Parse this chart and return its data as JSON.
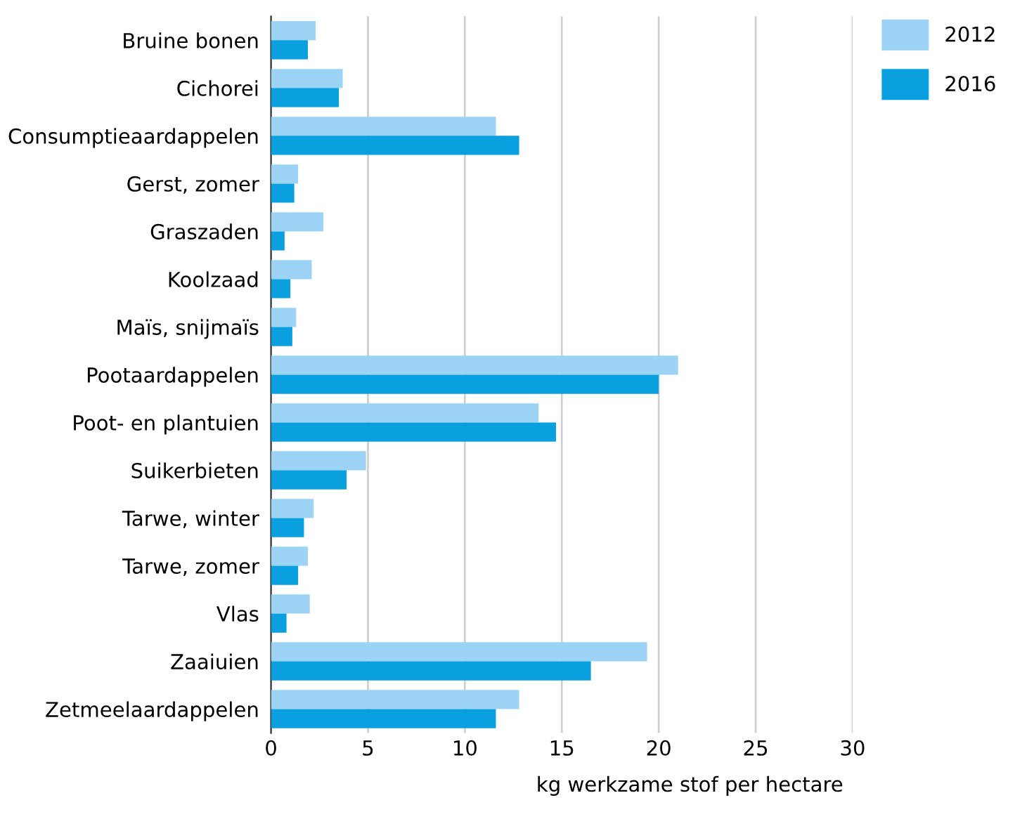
{
  "chart_data": {
    "type": "bar",
    "orientation": "horizontal",
    "xlabel": "kg werkzame stof per hectare",
    "categories": [
      "Bruine bonen",
      "Cichorei",
      "Consumptieaardappelen",
      "Gerst, zomer",
      "Graszaden",
      "Koolzaad",
      "Maïs, snijmaïs",
      "Pootaardappelen",
      "Poot- en plantuien",
      "Suikerbieten",
      "Tarwe, winter",
      "Tarwe, zomer",
      "Vlas",
      "Zaaiuien",
      "Zetmeelaardappelen"
    ],
    "series": [
      {
        "name": "2012",
        "color": "#9dd3f4",
        "values": [
          2.3,
          3.7,
          11.6,
          1.4,
          2.7,
          2.1,
          1.3,
          21.0,
          13.8,
          4.9,
          2.2,
          1.9,
          2.0,
          19.4,
          12.8
        ]
      },
      {
        "name": "2016",
        "color": "#0a9fdf",
        "values": [
          1.9,
          3.5,
          12.8,
          1.2,
          0.7,
          1.0,
          1.1,
          20.0,
          14.7,
          3.9,
          1.7,
          1.4,
          0.8,
          16.5,
          11.6
        ]
      }
    ],
    "xlim": [
      0,
      30
    ],
    "xticks": [
      0,
      5,
      10,
      15,
      20,
      25,
      30
    ],
    "grid": "x",
    "legend": "top right"
  }
}
